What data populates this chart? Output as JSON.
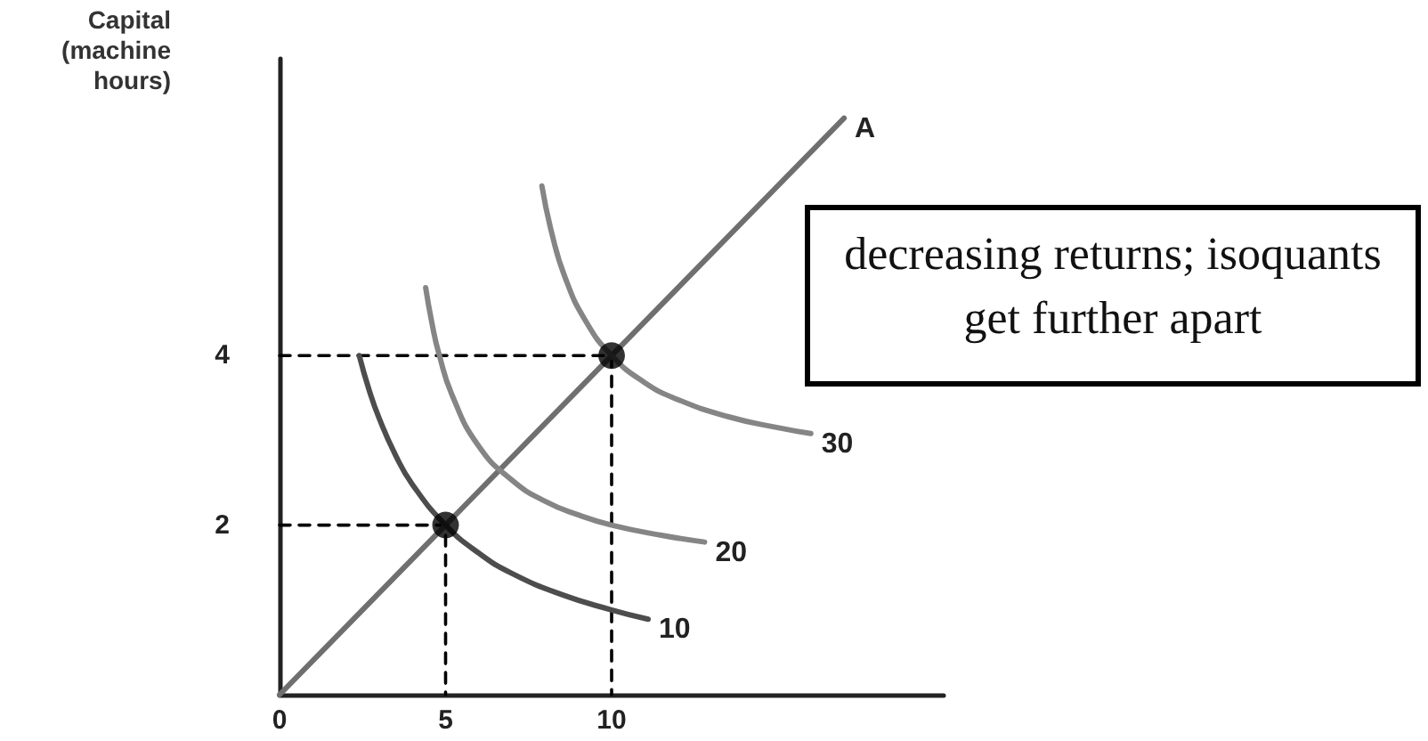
{
  "chart_data": {
    "type": "line",
    "ylabel": "Capital (machine hours)",
    "xlim": [
      0,
      20
    ],
    "ylim": [
      0,
      7.5
    ],
    "xticks": [
      0,
      5,
      10
    ],
    "yticks": [
      2,
      4
    ],
    "grid": false,
    "legend": false,
    "marker": "none",
    "annotations": [
      "decreasing returns; isoquants get further apart"
    ],
    "series": [
      {
        "name": "A",
        "color": "#6f6f6f",
        "x": [
          0,
          17
        ],
        "values": [
          0,
          6.8
        ]
      },
      {
        "name": "10",
        "color": "#4d4d4d",
        "x": [
          2.4,
          2.7,
          3.0,
          3.5,
          4.0,
          5,
          6,
          7,
          8.5,
          10,
          11.1
        ],
        "values": [
          4.0,
          3.59,
          3.26,
          2.82,
          2.48,
          2,
          1.67,
          1.43,
          1.18,
          1.0,
          0.89
        ]
      },
      {
        "name": "20",
        "color": "#858585",
        "x": [
          4.4,
          4.6,
          4.8,
          5.2,
          6,
          7,
          8,
          9,
          10,
          11.5,
          12.8
        ],
        "values": [
          4.8,
          4.36,
          4.02,
          3.53,
          2.93,
          2.53,
          2.28,
          2.12,
          2.0,
          1.88,
          1.8
        ]
      },
      {
        "name": "30",
        "color": "#858585",
        "x": [
          7.9,
          8.2,
          8.6,
          9.2,
          10,
          11,
          12,
          13.5,
          15,
          16
        ],
        "values": [
          6.0,
          5.44,
          4.92,
          4.42,
          4,
          3.68,
          3.48,
          3.28,
          3.15,
          3.08
        ]
      },
      {
        "color": "#000000",
        "x": [
          0,
          5,
          5
        ],
        "values": [
          2,
          2,
          0
        ],
        "line_style": "dashed"
      },
      {
        "color": "#000000",
        "x": [
          0,
          10,
          10
        ],
        "values": [
          4,
          4,
          0
        ],
        "line_style": "dashed"
      },
      {
        "type": "scatter",
        "marker": "circle",
        "color": "#000000",
        "x": [
          5,
          10
        ],
        "values": [
          2,
          4
        ]
      }
    ]
  }
}
